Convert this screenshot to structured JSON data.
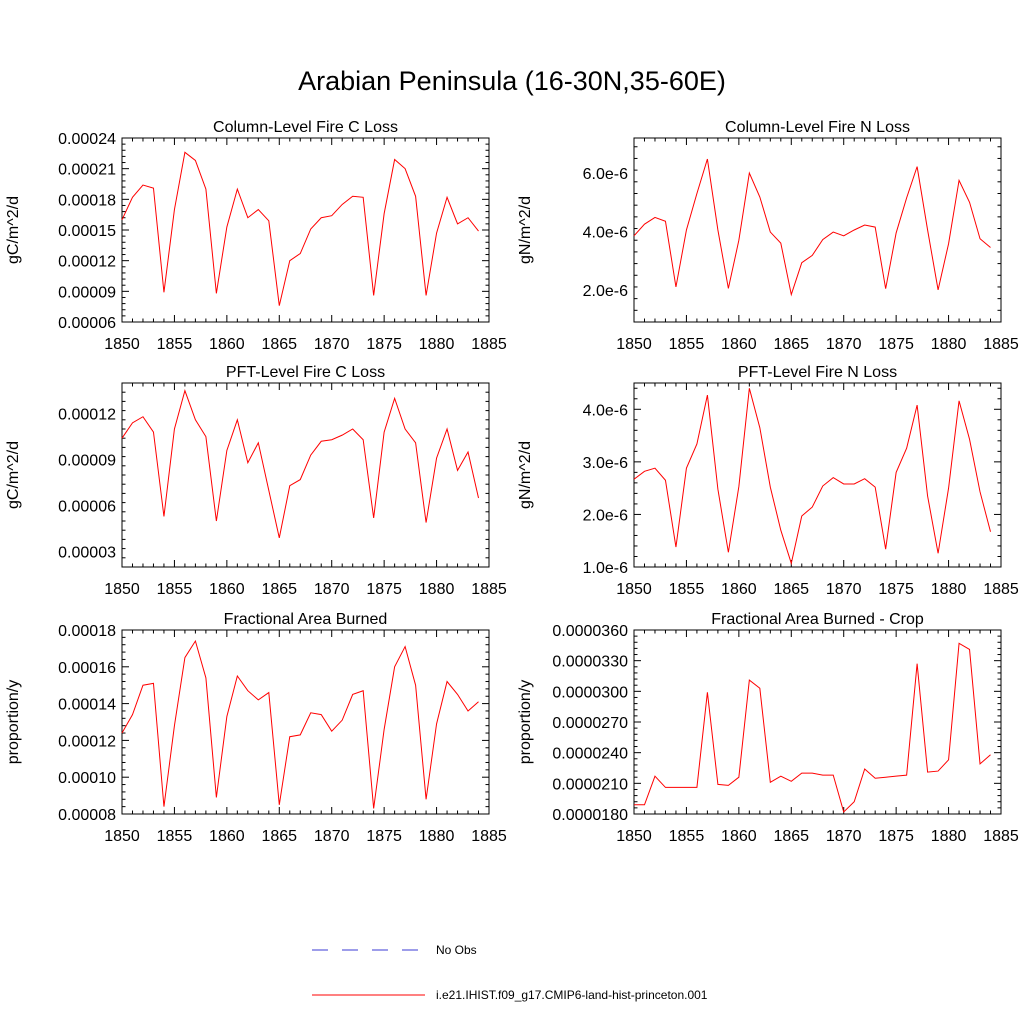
{
  "figure": {
    "title": "Arabian Peninsula (16-30N,35-60E)",
    "legend": [
      {
        "label": "No Obs",
        "color": "#3b3bd6",
        "style": "dashed"
      },
      {
        "label": "i.e21.IHIST.f09_g17.CMIP6-land-hist-princeton.001",
        "color": "#ff0000",
        "style": "solid"
      }
    ]
  },
  "chart_data": [
    {
      "type": "line",
      "title": "Column-Level Fire C Loss",
      "ylabel": "gC/m^2/d",
      "xlim": [
        1850,
        1885
      ],
      "ylim": [
        6e-05,
        0.00024
      ],
      "xticks": [
        "1850",
        "1855",
        "1860",
        "1865",
        "1870",
        "1875",
        "1880",
        "1885"
      ],
      "yticks": [
        "0.00006",
        "0.00009",
        "0.00012",
        "0.00015",
        "0.00018",
        "0.00021",
        "0.00024"
      ],
      "series": [
        {
          "color": "#ff0000",
          "x": [
            1850,
            1851,
            1852,
            1853,
            1854,
            1855,
            1856,
            1857,
            1858,
            1859,
            1860,
            1861,
            1862,
            1863,
            1864,
            1865,
            1866,
            1867,
            1868,
            1869,
            1870,
            1871,
            1872,
            1873,
            1874,
            1875,
            1876,
            1877,
            1878,
            1879,
            1880,
            1881,
            1882,
            1883,
            1884
          ],
          "values": [
            0.00016,
            0.000182,
            0.000194,
            0.000191,
            8.9e-05,
            0.00017,
            0.000226,
            0.000218,
            0.00019,
            8.8e-05,
            0.000153,
            0.00019,
            0.000162,
            0.00017,
            0.000159,
            7.6e-05,
            0.00012,
            0.000127,
            0.000151,
            0.000162,
            0.000164,
            0.000175,
            0.000183,
            0.000182,
            8.6e-05,
            0.000166,
            0.000219,
            0.00021,
            0.000183,
            8.6e-05,
            0.000147,
            0.000182,
            0.000156,
            0.000162,
            0.000149
          ]
        }
      ]
    },
    {
      "type": "line",
      "title": "Column-Level Fire N Loss",
      "ylabel": "gN/m^2/d",
      "xlim": [
        1850,
        1885
      ],
      "ylim": [
        9e-07,
        7.2e-06
      ],
      "xticks": [
        "1850",
        "1855",
        "1860",
        "1865",
        "1870",
        "1875",
        "1880",
        "1885"
      ],
      "yticks": [
        "2.0e-6",
        "4.0e-6",
        "6.0e-6"
      ],
      "series": [
        {
          "color": "#ff0000",
          "x": [
            1850,
            1851,
            1852,
            1853,
            1854,
            1855,
            1856,
            1857,
            1858,
            1859,
            1860,
            1861,
            1862,
            1863,
            1864,
            1865,
            1866,
            1867,
            1868,
            1869,
            1870,
            1871,
            1872,
            1873,
            1874,
            1875,
            1876,
            1877,
            1878,
            1879,
            1880,
            1881,
            1882,
            1883,
            1884
          ],
          "values": [
            3.85e-06,
            4.25e-06,
            4.48e-06,
            4.35e-06,
            2.1e-06,
            4.05e-06,
            5.3e-06,
            6.48e-06,
            4.05e-06,
            2.05e-06,
            3.7e-06,
            6e-06,
            5.18e-06,
            3.98e-06,
            3.6e-06,
            1.84e-06,
            2.93e-06,
            3.18e-06,
            3.72e-06,
            3.98e-06,
            3.85e-06,
            4.05e-06,
            4.22e-06,
            4.15e-06,
            2.04e-06,
            3.95e-06,
            5.15e-06,
            6.22e-06,
            4.05e-06,
            2e-06,
            3.58e-06,
            5.75e-06,
            5e-06,
            3.75e-06,
            3.45e-06
          ]
        }
      ]
    },
    {
      "type": "line",
      "title": "PFT-Level Fire C Loss",
      "ylabel": "gC/m^2/d",
      "xlim": [
        1850,
        1885
      ],
      "ylim": [
        2e-05,
        0.00014
      ],
      "xticks": [
        "1850",
        "1855",
        "1860",
        "1865",
        "1870",
        "1875",
        "1880",
        "1885"
      ],
      "yticks": [
        "0.00003",
        "0.00006",
        "0.00009",
        "0.00012"
      ],
      "series": [
        {
          "color": "#ff0000",
          "x": [
            1850,
            1851,
            1852,
            1853,
            1854,
            1855,
            1856,
            1857,
            1858,
            1859,
            1860,
            1861,
            1862,
            1863,
            1864,
            1865,
            1866,
            1867,
            1868,
            1869,
            1870,
            1871,
            1872,
            1873,
            1874,
            1875,
            1876,
            1877,
            1878,
            1879,
            1880,
            1881,
            1882,
            1883,
            1884
          ],
          "values": [
            0.000104,
            0.000114,
            0.000118,
            0.000108,
            5.3e-05,
            0.00011,
            0.000135,
            0.000116,
            0.000105,
            5e-05,
            9.6e-05,
            0.000116,
            8.8e-05,
            0.000101,
            7e-05,
            3.9e-05,
            7.3e-05,
            7.7e-05,
            9.3e-05,
            0.000102,
            0.000103,
            0.000106,
            0.00011,
            0.000103,
            5.2e-05,
            0.000108,
            0.00013,
            0.00011,
            0.000101,
            4.9e-05,
            9.1e-05,
            0.00011,
            8.3e-05,
            9.5e-05,
            6.5e-05
          ]
        }
      ]
    },
    {
      "type": "line",
      "title": "PFT-Level Fire N Loss",
      "ylabel": "gN/m^2/d",
      "xlim": [
        1850,
        1885
      ],
      "ylim": [
        1e-06,
        4.5e-06
      ],
      "xticks": [
        "1850",
        "1855",
        "1860",
        "1865",
        "1870",
        "1875",
        "1880",
        "1885"
      ],
      "yticks": [
        "1.0e-6",
        "2.0e-6",
        "3.0e-6",
        "4.0e-6"
      ],
      "series": [
        {
          "color": "#ff0000",
          "x": [
            1850,
            1851,
            1852,
            1853,
            1854,
            1855,
            1856,
            1857,
            1858,
            1859,
            1860,
            1861,
            1862,
            1863,
            1864,
            1865,
            1866,
            1867,
            1868,
            1869,
            1870,
            1871,
            1872,
            1873,
            1874,
            1875,
            1876,
            1877,
            1878,
            1879,
            1880,
            1881,
            1882,
            1883,
            1884
          ],
          "values": [
            2.67e-06,
            2.82e-06,
            2.88e-06,
            2.65e-06,
            1.38e-06,
            2.88e-06,
            3.34e-06,
            4.27e-06,
            2.48e-06,
            1.28e-06,
            2.53e-06,
            4.4e-06,
            3.65e-06,
            2.52e-06,
            1.7e-06,
            1.07e-06,
            1.97e-06,
            2.14e-06,
            2.54e-06,
            2.7e-06,
            2.58e-06,
            2.58e-06,
            2.68e-06,
            2.52e-06,
            1.34e-06,
            2.8e-06,
            3.26e-06,
            4.08e-06,
            2.35e-06,
            1.26e-06,
            2.5e-06,
            4.16e-06,
            3.43e-06,
            2.43e-06,
            1.67e-06
          ]
        }
      ]
    },
    {
      "type": "line",
      "title": "Fractional Area Burned",
      "ylabel": "proportion/y",
      "xlim": [
        1850,
        1885
      ],
      "ylim": [
        8e-05,
        0.00018
      ],
      "xticks": [
        "1850",
        "1855",
        "1860",
        "1865",
        "1870",
        "1875",
        "1880",
        "1885"
      ],
      "yticks": [
        "0.00008",
        "0.00010",
        "0.00012",
        "0.00014",
        "0.00016",
        "0.00018"
      ],
      "series": [
        {
          "color": "#ff0000",
          "x": [
            1850,
            1851,
            1852,
            1853,
            1854,
            1855,
            1856,
            1857,
            1858,
            1859,
            1860,
            1861,
            1862,
            1863,
            1864,
            1865,
            1866,
            1867,
            1868,
            1869,
            1870,
            1871,
            1872,
            1873,
            1874,
            1875,
            1876,
            1877,
            1878,
            1879,
            1880,
            1881,
            1882,
            1883,
            1884
          ],
          "values": [
            0.000124,
            0.000134,
            0.00015,
            0.000151,
            8.4e-05,
            0.000128,
            0.000165,
            0.000174,
            0.000154,
            8.9e-05,
            0.000133,
            0.000155,
            0.000147,
            0.000142,
            0.000146,
            8.5e-05,
            0.000122,
            0.000123,
            0.000135,
            0.000134,
            0.000125,
            0.000131,
            0.000145,
            0.000147,
            8.3e-05,
            0.000126,
            0.00016,
            0.000171,
            0.00015,
            8.8e-05,
            0.000129,
            0.000152,
            0.000145,
            0.000136,
            0.000141
          ]
        }
      ]
    },
    {
      "type": "line",
      "title": "Fractional Area Burned - Crop",
      "ylabel": "proportion/y",
      "xlim": [
        1850,
        1885
      ],
      "ylim": [
        1.8e-05,
        3.6e-05
      ],
      "xticks": [
        "1850",
        "1855",
        "1860",
        "1865",
        "1870",
        "1875",
        "1880",
        "1885"
      ],
      "yticks": [
        "0.0000180",
        "0.0000210",
        "0.0000240",
        "0.0000270",
        "0.0000300",
        "0.0000330",
        "0.0000360"
      ],
      "series": [
        {
          "color": "#ff0000",
          "x": [
            1850,
            1851,
            1852,
            1853,
            1854,
            1855,
            1856,
            1857,
            1858,
            1859,
            1860,
            1861,
            1862,
            1863,
            1864,
            1865,
            1866,
            1867,
            1868,
            1869,
            1870,
            1871,
            1872,
            1873,
            1874,
            1875,
            1876,
            1877,
            1878,
            1879,
            1880,
            1881,
            1882,
            1883,
            1884
          ],
          "values": [
            1.89e-05,
            1.89e-05,
            2.17e-05,
            2.06e-05,
            2.06e-05,
            2.06e-05,
            2.06e-05,
            2.99e-05,
            2.09e-05,
            2.08e-05,
            2.16e-05,
            3.11e-05,
            3.03e-05,
            2.11e-05,
            2.17e-05,
            2.12e-05,
            2.2e-05,
            2.2e-05,
            2.18e-05,
            2.18e-05,
            1.82e-05,
            1.92e-05,
            2.24e-05,
            2.15e-05,
            2.16e-05,
            2.17e-05,
            2.18e-05,
            3.27e-05,
            2.21e-05,
            2.22e-05,
            2.33e-05,
            3.47e-05,
            3.41e-05,
            2.29e-05,
            2.38e-05
          ]
        }
      ]
    }
  ]
}
